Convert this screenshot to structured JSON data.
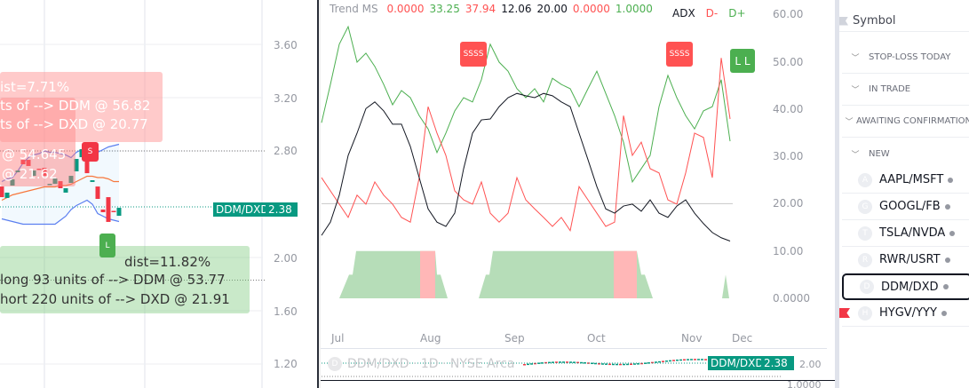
{
  "left_chart": {
    "y_ticks": [
      "3.60",
      "3.20",
      "2.80",
      "2.00",
      "1.60",
      "1.20"
    ],
    "price_label": {
      "symbol": "DDM/DXD",
      "value": "2.38"
    },
    "short_box": {
      "lines": [
        "ist=7.71%",
        "ts of --> DDM @ 56.82",
        "ts of --> DXD @ 20.77"
      ]
    },
    "short_box_old": {
      "lines": [
        "@ 54.645",
        "@ 21.62"
      ],
      "marker": "S"
    },
    "long_box": {
      "lines": [
        "dist=11.82%",
        "long 93 units of --> DDM @ 53.77",
        "hort 220 units of --> DXD @ 21.91"
      ],
      "marker": "L"
    },
    "colors": {
      "up": "#089981",
      "down": "#f23645",
      "band": "#5b7ff0",
      "basis": "#f7773c"
    }
  },
  "chart_data": [
    {
      "type": "candlestick",
      "title": "DDM/DXD",
      "ylim": [
        1.1,
        3.8
      ],
      "candles": [
        [
          2.533,
          2.453
        ],
        [
          2.447,
          2.487
        ],
        [
          2.54,
          2.587
        ],
        [
          2.64,
          2.653
        ],
        [
          2.733,
          2.7
        ],
        [
          2.733,
          2.687
        ],
        [
          2.613,
          2.653
        ],
        [
          2.667,
          2.66
        ],
        [
          2.673,
          2.613
        ],
        [
          2.547,
          2.553
        ],
        [
          2.553,
          2.593
        ],
        [
          2.573,
          2.52
        ],
        [
          2.487,
          2.52
        ],
        [
          2.56,
          2.613
        ],
        [
          2.647,
          2.74
        ],
        [
          2.753,
          2.813
        ],
        [
          2.78,
          2.633
        ],
        [
          2.567,
          2.58
        ],
        [
          2.533,
          2.44
        ],
        [
          2.36,
          2.34
        ],
        [
          2.453,
          2.267
        ],
        [
          2.35,
          2.345
        ],
        [
          2.313,
          2.373
        ]
      ],
      "bb_upper": [
        2.57,
        2.59,
        2.6,
        2.65,
        2.71,
        2.75,
        2.77,
        2.78,
        2.8,
        2.79,
        2.79,
        2.78,
        2.77,
        2.75,
        2.79,
        2.81,
        2.8,
        2.79,
        2.79,
        2.81,
        2.83,
        2.84,
        2.85
      ],
      "bb_basis": [
        2.43,
        2.45,
        2.47,
        2.48,
        2.49,
        2.5,
        2.51,
        2.52,
        2.53,
        2.53,
        2.53,
        2.54,
        2.54,
        2.55,
        2.57,
        2.59,
        2.61,
        2.61,
        2.6,
        2.6,
        2.59,
        2.57,
        2.57
      ],
      "bb_lower": [
        2.29,
        2.28,
        2.27,
        2.26,
        2.25,
        2.25,
        2.25,
        2.25,
        2.25,
        2.25,
        2.25,
        2.28,
        2.31,
        2.36,
        2.39,
        2.41,
        2.43,
        2.4,
        2.33,
        2.31,
        2.29,
        2.28,
        2.27
      ],
      "hlines": [
        2.8,
        2.38,
        1.83
      ]
    },
    {
      "type": "line",
      "title": "Trend MS",
      "ylim": [
        0,
        60
      ],
      "y_ticks": [
        "60.00",
        "50.00",
        "40.00",
        "30.00",
        "20.00",
        "10.00",
        "0.0000"
      ],
      "x_ticks": [
        "Jul",
        "Aug",
        "Sep",
        "Oct",
        "Nov",
        "Dec"
      ],
      "series": [
        {
          "name": "D+",
          "color": "#4caf50",
          "values": [
            37.1,
            45.2,
            53.7,
            57.4,
            49.9,
            51.8,
            49.0,
            45.2,
            40.9,
            43.9,
            42.4,
            38.6,
            35.8,
            30.8,
            34.9,
            39.6,
            42.4,
            41.5,
            46.2,
            53.7,
            49.9,
            48.0,
            44.3,
            42.4,
            44.3,
            41.5,
            46.5,
            45.2,
            44.3,
            40.5,
            44.3,
            48.0,
            43.3,
            38.6,
            33.0,
            24.6,
            27.4,
            30.2,
            40.5,
            47.1,
            42.4,
            38.6,
            35.8,
            39.6,
            40.5,
            46.2,
            33.2
          ]
        },
        {
          "name": "D-",
          "color": "#ff5252",
          "values": [
            25.5,
            22.7,
            19.9,
            17.1,
            21.8,
            19.9,
            24.6,
            21.8,
            19.9,
            17.1,
            16.1,
            25.5,
            40.5,
            34.9,
            30.2,
            22.7,
            20.8,
            19.9,
            24.6,
            18.0,
            16.1,
            18.0,
            25.5,
            20.8,
            18.9,
            17.1,
            15.2,
            17.1,
            14.3,
            23.6,
            20.8,
            18.0,
            15.2,
            16.1,
            38.6,
            30.2,
            33.0,
            27.4,
            26.5,
            20.8,
            19.9,
            26.5,
            34.9,
            34.0,
            25.5,
            50.8,
            37.9
          ]
        },
        {
          "name": "ADX",
          "color": "#131722",
          "values": [
            13.3,
            16.1,
            21.8,
            30.2,
            34.9,
            40.1,
            41.5,
            39.6,
            36.8,
            36.8,
            32.1,
            25.5,
            18.9,
            16.1,
            15.2,
            18.0,
            27.4,
            34.9,
            37.7,
            37.9,
            40.5,
            42.4,
            43.3,
            42.8,
            42.4,
            43.3,
            42.8,
            41.5,
            40.5,
            34.9,
            29.3,
            23.6,
            18.9,
            18.0,
            19.5,
            19.9,
            18.4,
            20.8,
            18.0,
            17.1,
            19.5,
            20.8,
            18.0,
            15.8,
            13.9,
            12.8,
            12.1
          ]
        }
      ],
      "trend_area": [
        [
          0,
          0
        ],
        [
          2,
          0
        ],
        [
          3.1,
          0.5
        ],
        [
          3.5,
          0.5
        ],
        [
          3.9,
          1
        ],
        [
          12.8,
          1
        ],
        [
          13.0,
          0.5
        ],
        [
          13.4,
          0.5
        ],
        [
          14.2,
          0
        ],
        [
          17.7,
          0
        ],
        [
          18.5,
          0.5
        ],
        [
          18.9,
          0.5
        ],
        [
          19.3,
          1
        ],
        [
          35.5,
          1
        ],
        [
          36.0,
          0.5
        ],
        [
          36.4,
          0.5
        ],
        [
          37.3,
          0
        ],
        [
          45.1,
          0
        ],
        [
          45.5,
          0.5
        ],
        [
          45.9,
          0
        ],
        [
          46,
          0
        ]
      ],
      "trend_red_ranges": [
        [
          11.1,
          12.8
        ],
        [
          32.9,
          35.5
        ]
      ],
      "hline": 20
    }
  ],
  "right_chart": {
    "legend": {
      "name": "Trend MS",
      "values": [
        {
          "v": "0.0000",
          "c": "#ff5252"
        },
        {
          "v": "33.25",
          "c": "#4caf50"
        },
        {
          "v": "37.94",
          "c": "#ff5252"
        },
        {
          "v": "12.06",
          "c": "#131722"
        },
        {
          "v": "20.00",
          "c": "#131722"
        },
        {
          "v": "0.0000",
          "c": "#ff5252"
        },
        {
          "v": "1.0000",
          "c": "#4caf50"
        }
      ]
    },
    "series_legend": [
      {
        "t": "ADX",
        "c": "#131722"
      },
      {
        "t": "D-",
        "c": "#ff5252"
      },
      {
        "t": "D+",
        "c": "#4caf50"
      }
    ],
    "markers": {
      "sell": "SSSS",
      "long": "L L"
    },
    "mini": {
      "watermark_letter": "D",
      "watermark": "DDM/DXD · 1D · NYSE Arca",
      "symbol": "DDM/DXD",
      "value": "2.38",
      "tick_partial": "2.00",
      "bottom_tick": "1.0000"
    }
  },
  "sidebar": {
    "header": "Symbol",
    "sections": [
      "STOP-LOSS TODAY",
      "IN TRADE",
      "AWAITING CONFIRMATION",
      "NEW"
    ],
    "items": [
      {
        "letter": "A",
        "symbol": "AAPL/MSFT"
      },
      {
        "letter": "G",
        "symbol": "GOOGL/FB"
      },
      {
        "letter": "T",
        "symbol": "TSLA/NVDA"
      },
      {
        "letter": "R",
        "symbol": "RWR/USRT"
      },
      {
        "letter": "D",
        "symbol": "DDM/DXD"
      },
      {
        "letter": "H",
        "symbol": "HYGV/YYY"
      }
    ]
  }
}
